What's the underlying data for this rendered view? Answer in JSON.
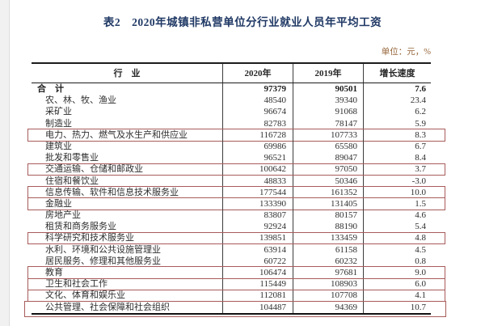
{
  "page": {
    "title": "表2　2020年城镇非私营单位分行业就业人员年平均工资",
    "unit_note": "单位：元，%"
  },
  "table": {
    "columns": [
      "行　业",
      "2020年",
      "2019年",
      "增长速度"
    ],
    "rows": [
      {
        "industry": "合　计",
        "y2020": "97379",
        "y2019": "90501",
        "growth": "7.6",
        "total": true,
        "highlighted": false
      },
      {
        "industry": "农、林、牧、渔业",
        "y2020": "48540",
        "y2019": "39340",
        "growth": "23.4",
        "total": false,
        "highlighted": false
      },
      {
        "industry": "采矿业",
        "y2020": "96674",
        "y2019": "91068",
        "growth": "6.2",
        "total": false,
        "highlighted": false
      },
      {
        "industry": "制造业",
        "y2020": "82783",
        "y2019": "78147",
        "growth": "5.9",
        "total": false,
        "highlighted": false
      },
      {
        "industry": "电力、热力、燃气及水生产和供应业",
        "y2020": "116728",
        "y2019": "107733",
        "growth": "8.3",
        "total": false,
        "highlighted": true
      },
      {
        "industry": "建筑业",
        "y2020": "69986",
        "y2019": "65580",
        "growth": "6.7",
        "total": false,
        "highlighted": false
      },
      {
        "industry": "批发和零售业",
        "y2020": "96521",
        "y2019": "89047",
        "growth": "8.4",
        "total": false,
        "highlighted": false
      },
      {
        "industry": "交通运输、仓储和邮政业",
        "y2020": "100642",
        "y2019": "97050",
        "growth": "3.7",
        "total": false,
        "highlighted": true
      },
      {
        "industry": "住宿和餐饮业",
        "y2020": "48833",
        "y2019": "50346",
        "growth": "-3.0",
        "total": false,
        "highlighted": false
      },
      {
        "industry": "信息传输、软件和信息技术服务业",
        "y2020": "177544",
        "y2019": "161352",
        "growth": "10.0",
        "total": false,
        "highlighted": true
      },
      {
        "industry": "金融业",
        "y2020": "133390",
        "y2019": "131405",
        "growth": "1.5",
        "total": false,
        "highlighted": true
      },
      {
        "industry": "房地产业",
        "y2020": "83807",
        "y2019": "80157",
        "growth": "4.6",
        "total": false,
        "highlighted": false
      },
      {
        "industry": "租赁和商务服务业",
        "y2020": "92924",
        "y2019": "88190",
        "growth": "5.4",
        "total": false,
        "highlighted": false
      },
      {
        "industry": "科学研究和技术服务业",
        "y2020": "139851",
        "y2019": "133459",
        "growth": "4.8",
        "total": false,
        "highlighted": true
      },
      {
        "industry": "水利、环境和公共设施管理业",
        "y2020": "63914",
        "y2019": "61158",
        "growth": "4.5",
        "total": false,
        "highlighted": false
      },
      {
        "industry": "居民服务、修理和其他服务业",
        "y2020": "60722",
        "y2019": "60232",
        "growth": "0.8",
        "total": false,
        "highlighted": false
      },
      {
        "industry": "教育",
        "y2020": "106474",
        "y2019": "97681",
        "growth": "9.0",
        "total": false,
        "highlighted": true
      },
      {
        "industry": "卫生和社会工作",
        "y2020": "115449",
        "y2019": "108903",
        "growth": "6.0",
        "total": false,
        "highlighted": true
      },
      {
        "industry": "文化、体育和娱乐业",
        "y2020": "112081",
        "y2019": "107708",
        "growth": "4.1",
        "total": false,
        "highlighted": true
      },
      {
        "industry": "公共管理、社会保障和社会组织",
        "y2020": "104487",
        "y2019": "94369",
        "growth": "10.7",
        "total": false,
        "highlighted": true
      }
    ]
  },
  "colors": {
    "highlight_border": "#a85b5b",
    "title": "#1f3864",
    "unit_note": "#966438"
  }
}
